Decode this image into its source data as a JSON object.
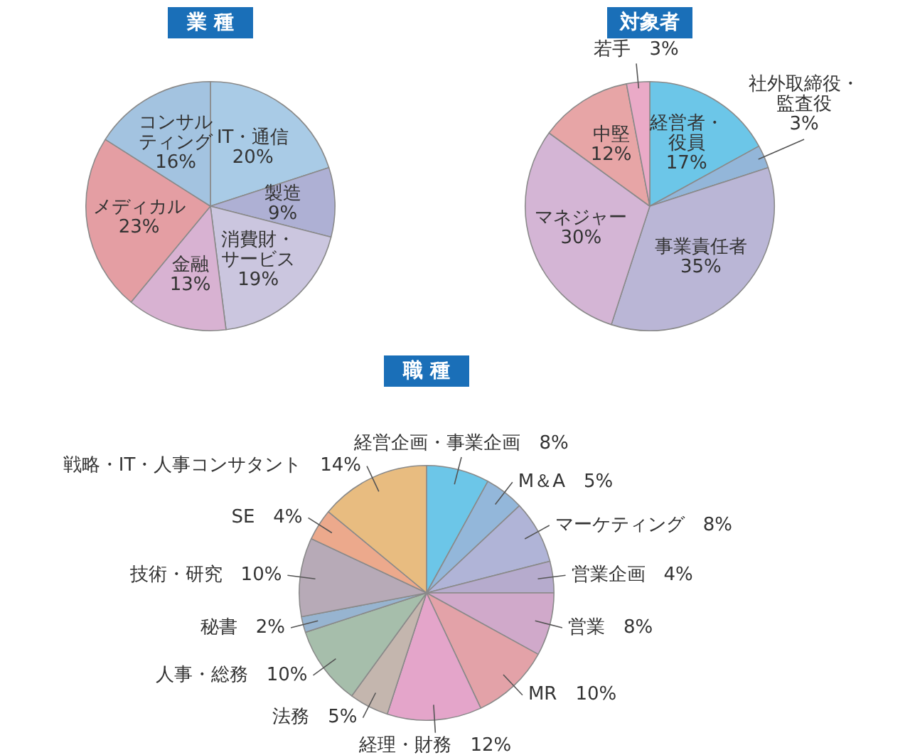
{
  "chart_data": [
    {
      "type": "pie",
      "title": "業 種",
      "categories": [
        "IT・通信",
        "製造",
        "消費財・サービス",
        "金融",
        "メディカル",
        "コンサルティング"
      ],
      "values": [
        20,
        9,
        19,
        13,
        23,
        16
      ],
      "value_labels": [
        "20%",
        "9%",
        "19%",
        "13%",
        "23%",
        "16%"
      ],
      "colors": [
        "#a9cbe6",
        "#aeb0d4",
        "#cbc6df",
        "#d8b2d2",
        "#e49ea3",
        "#a3c3e0"
      ]
    },
    {
      "type": "pie",
      "title": "対象者",
      "categories": [
        "経営者・役員",
        "社外取締役・監査役",
        "事業責任者",
        "マネジャー",
        "中堅",
        "若手"
      ],
      "values": [
        17,
        3,
        35,
        30,
        12,
        3
      ],
      "value_labels": [
        "17%",
        "3%",
        "35%",
        "30%",
        "12%",
        "3%"
      ],
      "colors": [
        "#6cc6e8",
        "#93b6d9",
        "#bab6d6",
        "#d4b5d5",
        "#e7a5a6",
        "#eaaac7"
      ]
    },
    {
      "type": "pie",
      "title": "職 種",
      "categories": [
        "経営企画・事業企画",
        "M＆A",
        "マーケティング",
        "営業企画",
        "営業",
        "MR",
        "経理・財務",
        "法務",
        "人事・総務",
        "秘書",
        "技術・研究",
        "SE",
        "戦略・IT・人事コンサタント"
      ],
      "values": [
        8,
        5,
        8,
        4,
        8,
        10,
        12,
        5,
        10,
        2,
        10,
        4,
        14
      ],
      "value_labels": [
        "8%",
        "5%",
        "8%",
        "4%",
        "8%",
        "10%",
        "12%",
        "5%",
        "10%",
        "2%",
        "10%",
        "4%",
        "14%"
      ],
      "colors": [
        "#6cc6e8",
        "#93b7da",
        "#b0b4d7",
        "#b6abcd",
        "#d0a9ca",
        "#e3a2a8",
        "#e4a5ca",
        "#c4b6ae",
        "#a6beab",
        "#97b4d0",
        "#b7aab7",
        "#eca98c",
        "#e8bc80"
      ]
    }
  ]
}
